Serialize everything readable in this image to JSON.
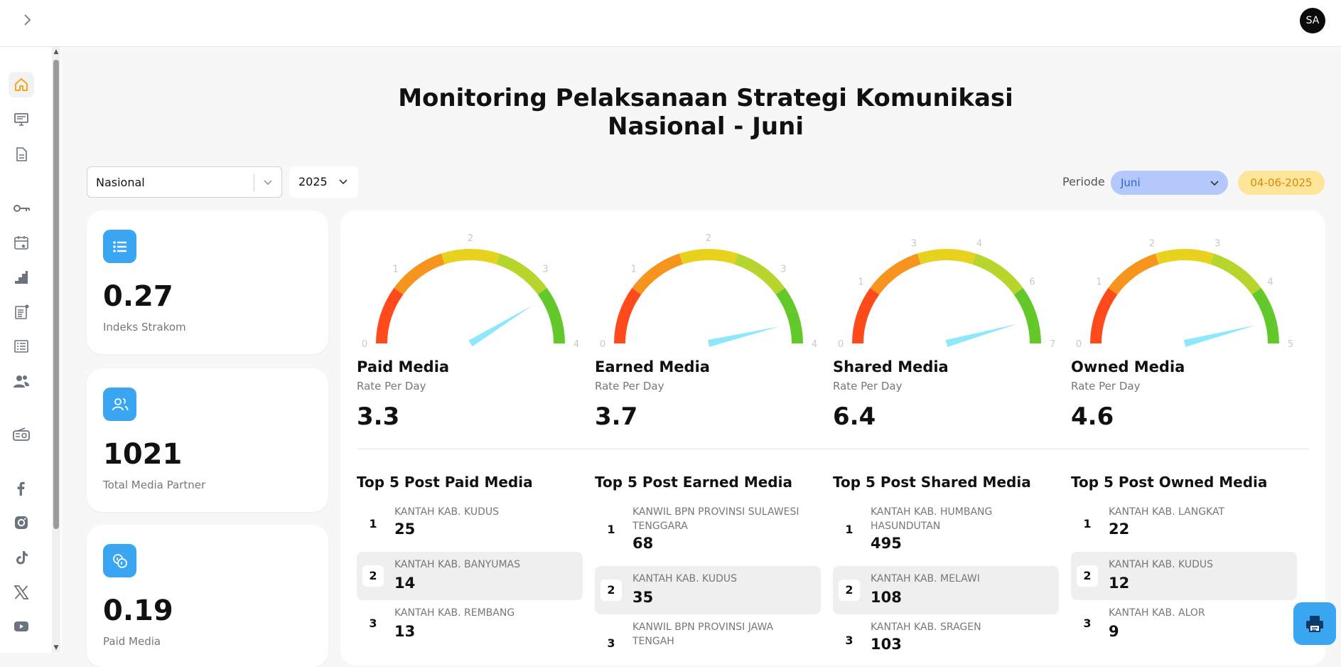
{
  "header": {
    "avatar_initials": "SA"
  },
  "sidebar": {
    "items": [
      {
        "icon": "home-icon"
      },
      {
        "icon": "monitor-icon"
      },
      {
        "icon": "document-icon"
      },
      {
        "icon": "key-icon"
      },
      {
        "icon": "calendar-star-icon"
      },
      {
        "icon": "stairs-chart-icon"
      },
      {
        "icon": "news-icon"
      },
      {
        "icon": "list-icon"
      },
      {
        "icon": "users-icon"
      },
      {
        "icon": "radio-icon"
      },
      {
        "icon": "facebook-icon"
      },
      {
        "icon": "instagram-icon"
      },
      {
        "icon": "tiktok-icon"
      },
      {
        "icon": "x-icon"
      },
      {
        "icon": "youtube-icon"
      }
    ]
  },
  "page": {
    "title_line1": "Monitoring Pelaksanaan Strategi Komunikasi",
    "title_line2": "Nasional - Juni"
  },
  "filters": {
    "region": "Nasional",
    "year": "2025",
    "periode_label": "Periode",
    "periode_value": "Juni",
    "date": "04-06-2025"
  },
  "stats": [
    {
      "value": "0.27",
      "label": "Indeks Strakom",
      "icon": "list-icon"
    },
    {
      "value": "1021",
      "label": "Total Media Partner",
      "icon": "users-icon"
    },
    {
      "value": "0.19",
      "label": "Paid Media",
      "icon": "coins-icon"
    }
  ],
  "gauges": [
    {
      "title": "Paid Media",
      "subtitle": "Rate Per Day",
      "value_text": "3.3",
      "value": 3.3,
      "max": 4,
      "ticks": [
        "0",
        "1",
        "2",
        "3",
        "4"
      ]
    },
    {
      "title": "Earned Media",
      "subtitle": "Rate Per Day",
      "value_text": "3.7",
      "value": 3.7,
      "max": 4,
      "ticks": [
        "0",
        "1",
        "2",
        "3",
        "4"
      ]
    },
    {
      "title": "Shared Media",
      "subtitle": "Rate Per Day",
      "value_text": "6.4",
      "value": 6.4,
      "max": 7,
      "ticks": [
        "0",
        "1",
        "3",
        "4",
        "6",
        "7"
      ]
    },
    {
      "title": "Owned Media",
      "subtitle": "Rate Per Day",
      "value_text": "4.6",
      "value": 4.6,
      "max": 5,
      "ticks": [
        "0",
        "1",
        "2",
        "3",
        "4",
        "5"
      ]
    }
  ],
  "top5": [
    {
      "title": "Top 5 Post Paid Media",
      "rows": [
        {
          "rank": "1",
          "name": "KANTAH KAB. KUDUS",
          "count": "25"
        },
        {
          "rank": "2",
          "name": "KANTAH KAB. BANYUMAS",
          "count": "14"
        },
        {
          "rank": "3",
          "name": "KANTAH KAB. REMBANG",
          "count": "13"
        }
      ]
    },
    {
      "title": "Top 5 Post Earned Media",
      "rows": [
        {
          "rank": "1",
          "name": "KANWIL BPN PROVINSI SULAWESI TENGGARA",
          "count": "68"
        },
        {
          "rank": "2",
          "name": "KANTAH KAB. KUDUS",
          "count": "35"
        },
        {
          "rank": "3",
          "name": "KANWIL BPN PROVINSI JAWA TENGAH",
          "count": ""
        }
      ]
    },
    {
      "title": "Top 5 Post Shared Media",
      "rows": [
        {
          "rank": "1",
          "name": "KANTAH KAB. HUMBANG HASUNDUTAN",
          "count": "495"
        },
        {
          "rank": "2",
          "name": "KANTAH KAB. MELAWI",
          "count": "108"
        },
        {
          "rank": "3",
          "name": "KANTAH KAB. SRAGEN",
          "count": "103"
        }
      ]
    },
    {
      "title": "Top 5 Post Owned Media",
      "rows": [
        {
          "rank": "1",
          "name": "KANTAH KAB. LANGKAT",
          "count": "22"
        },
        {
          "rank": "2",
          "name": "KANTAH KAB. KUDUS",
          "count": "12"
        },
        {
          "rank": "3",
          "name": "KANTAH KAB. ALOR",
          "count": "9"
        }
      ]
    }
  ],
  "colors": {
    "accent": "#3aa6f2",
    "needle": "#8ee8fb",
    "periode_bg": "#b5c8fb",
    "date_bg": "#fde59a"
  }
}
